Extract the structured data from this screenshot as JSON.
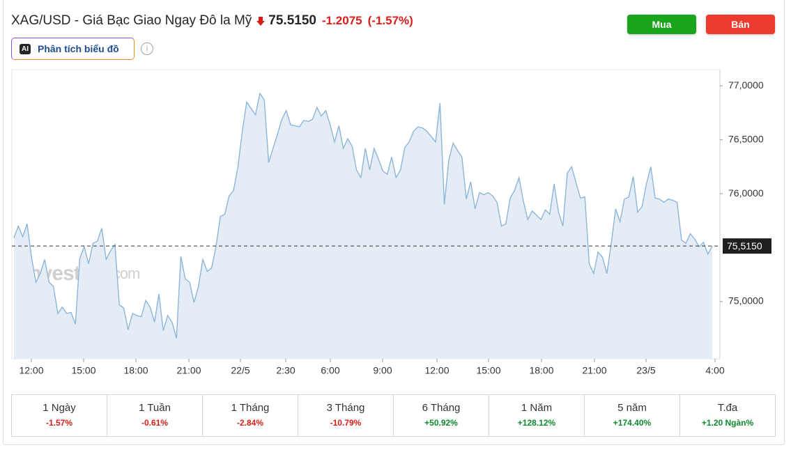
{
  "header": {
    "title": "XAG/USD - Giá Bạc Giao Ngay Đô la Mỹ",
    "price": "75.5150",
    "change": "-1.2075",
    "change_percent": "(-1.57%)",
    "buy": "Mua",
    "sell": "Bán",
    "ai_badge": "AI",
    "analysis": "Phân tích biểu đồ"
  },
  "chart_data": {
    "type": "area",
    "color": "#8db5d9",
    "fill": "#e4edf6",
    "watermark": [
      "Investing",
      ".com"
    ],
    "values": [
      75.59,
      75.7,
      75.6,
      75.72,
      75.41,
      75.18,
      75.26,
      75.39,
      75.18,
      75.14,
      74.89,
      74.95,
      74.89,
      74.9,
      74.79,
      75.4,
      75.51,
      75.35,
      75.54,
      75.56,
      75.68,
      75.39,
      75.47,
      75.53,
      74.97,
      74.94,
      74.74,
      74.89,
      74.87,
      74.86,
      75.01,
      74.95,
      74.81,
      75.07,
      74.73,
      74.87,
      74.81,
      74.66,
      75.42,
      75.21,
      75.18,
      74.99,
      75.14,
      75.39,
      75.28,
      75.31,
      75.51,
      75.79,
      75.81,
      75.98,
      76.03,
      76.25,
      76.58,
      76.85,
      76.79,
      76.73,
      76.93,
      76.87,
      76.29,
      76.42,
      76.55,
      76.69,
      76.77,
      76.64,
      76.63,
      76.62,
      76.68,
      76.67,
      76.69,
      76.8,
      76.72,
      76.77,
      76.64,
      76.48,
      76.63,
      76.42,
      76.51,
      76.44,
      76.22,
      76.15,
      76.42,
      76.22,
      76.42,
      76.32,
      76.21,
      76.18,
      76.34,
      76.15,
      76.22,
      76.43,
      76.48,
      76.58,
      76.62,
      76.61,
      76.58,
      76.53,
      76.48,
      76.84,
      75.9,
      76.31,
      76.47,
      76.4,
      76.34,
      75.95,
      76.11,
      75.86,
      76.01,
      75.99,
      76.01,
      75.98,
      75.92,
      75.7,
      75.72,
      75.96,
      76.03,
      76.15,
      75.93,
      75.76,
      75.84,
      75.8,
      75.76,
      75.85,
      75.81,
      76.09,
      75.83,
      75.7,
      76.19,
      76.25,
      76.1,
      75.96,
      75.97,
      75.35,
      75.26,
      75.46,
      75.41,
      75.26,
      75.54,
      75.86,
      75.74,
      75.95,
      75.97,
      76.16,
      75.83,
      75.88,
      76.09,
      76.25,
      75.96,
      75.95,
      75.92,
      75.95,
      75.94,
      75.92,
      75.57,
      75.54,
      75.63,
      75.58,
      75.51,
      75.55,
      75.44,
      75.515
    ],
    "ylim": [
      74.47,
      77.15
    ],
    "yticks": [
      {
        "value": 75,
        "label": "75,0000"
      },
      {
        "value": 76,
        "label": "76,0000"
      },
      {
        "value": 76.5,
        "label": "76,5000"
      },
      {
        "value": 77,
        "label": "77,0000"
      }
    ],
    "current": {
      "value": 75.515,
      "label": "75,5150"
    },
    "xtick_labels": [
      "12:00",
      "15:00",
      "18:00",
      "21:00",
      "22/5",
      "2:30",
      "6:00",
      "9:00",
      "12:00",
      "15:00",
      "18:00",
      "21:00",
      "23/5",
      "4:00"
    ]
  },
  "periods": [
    {
      "label": "1 Ngày",
      "change": "-1.57%"
    },
    {
      "label": "1 Tuần",
      "change": "-0.61%"
    },
    {
      "label": "1 Tháng",
      "change": "-2.84%"
    },
    {
      "label": "3 Tháng",
      "change": "-10.79%"
    },
    {
      "label": "6 Tháng",
      "change": "+50.92%"
    },
    {
      "label": "1 Năm",
      "change": "+128.12%"
    },
    {
      "label": "5 năm",
      "change": "+174.40%"
    },
    {
      "label": "T.đa",
      "change": "+1.20 Ngàn%"
    }
  ]
}
